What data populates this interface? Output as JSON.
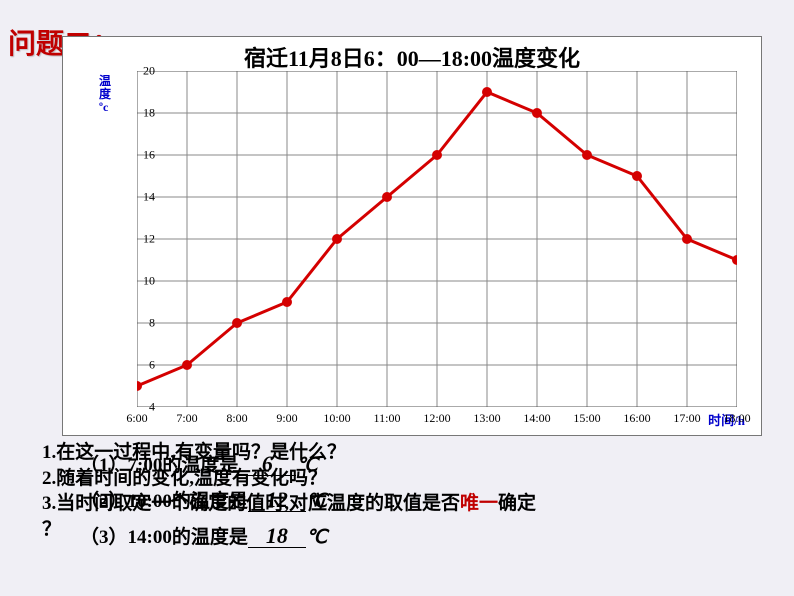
{
  "heading": "问题二：",
  "chart": {
    "title": "宿迁11月8日6：00—18:00温度变化",
    "type": "line",
    "y_axis": {
      "label_line1": "温",
      "label_line2": "度",
      "unit": "ºc",
      "min": 4,
      "max": 20,
      "step": 2,
      "ticks": [
        4,
        6,
        8,
        10,
        12,
        14,
        16,
        18,
        20
      ],
      "label_color": "#0000cc"
    },
    "x_axis": {
      "label": "时间/h",
      "ticks": [
        "6:00",
        "7:00",
        "8:00",
        "9:00",
        "10:00",
        "11:00",
        "12:00",
        "13:00",
        "14:00",
        "15:00",
        "16:00",
        "17:00",
        "18:00"
      ],
      "label_color": "#0000cc"
    },
    "series": {
      "color": "#d40000",
      "line_width": 3,
      "marker": "circle",
      "marker_size": 5,
      "points": [
        {
          "x": 0,
          "y": 5
        },
        {
          "x": 1,
          "y": 6
        },
        {
          "x": 2,
          "y": 8
        },
        {
          "x": 3,
          "y": 9
        },
        {
          "x": 4,
          "y": 12
        },
        {
          "x": 5,
          "y": 14
        },
        {
          "x": 6,
          "y": 16
        },
        {
          "x": 7,
          "y": 19
        },
        {
          "x": 8,
          "y": 18
        },
        {
          "x": 9,
          "y": 16
        },
        {
          "x": 10,
          "y": 15
        },
        {
          "x": 11,
          "y": 12
        },
        {
          "x": 12,
          "y": 11
        }
      ]
    },
    "grid_color": "#888888",
    "background_color": "#ffffff"
  },
  "questions": {
    "q1": "1.在这一过程中,有变量吗？是什么？",
    "q2": "2.随着时间的变化,温度有变化吗？",
    "q3a": "3.当时间取定一个确定的值时,对应温度的取值是否",
    "q3b": "唯一",
    "q3c": "确定",
    "qmark": "？"
  },
  "answers": {
    "a1_pre": "（1）7:00的温度是",
    "a1_val": "6",
    "a2_pre": "（2）10:00的温度是",
    "a2_val": "12",
    "a3_pre": "（3）14:00的温度是",
    "a3_val": "18",
    "unit": "℃"
  }
}
